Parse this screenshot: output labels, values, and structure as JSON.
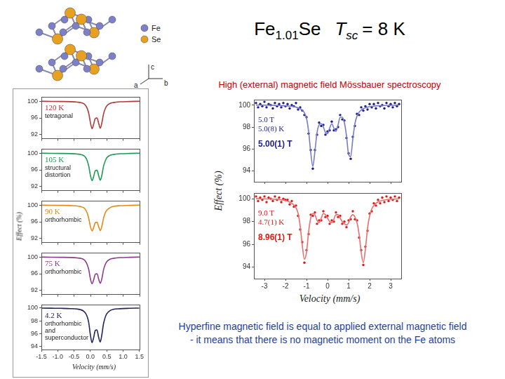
{
  "header": {
    "title": [
      [
        {
          "text": "Fe"
        },
        {
          "text": "1.01",
          "sub": true
        },
        {
          "text": "Se"
        }
      ],
      [
        {
          "text": "T",
          "italic": true
        },
        {
          "text": "sc",
          "sub": true,
          "italic": true
        },
        {
          "text": "= 8 K"
        }
      ]
    ],
    "subtitle": "High (external) magnetic field Mössbauer spectroscopy"
  },
  "structure": {
    "legend": [
      {
        "label": "Fe",
        "color": "#7d80c8"
      },
      {
        "label": "Se",
        "color": "#e8a020"
      }
    ],
    "axes": [
      "c",
      "a",
      "b"
    ]
  },
  "left_panel": {
    "x_label": "Velocity (mm/s)",
    "y_label": "Effect (%)"
  },
  "right_panel": {
    "x_label": "Velocity (mm/s)",
    "y_label": "Effect (%)"
  },
  "conclusion": [
    "Hyperfine magnetic field is equal to applied external magnetic field",
    "- it means that there is no magnetic moment on the Fe atoms"
  ],
  "chart_data": [
    {
      "type": "line",
      "title": "120 K",
      "annotations": [
        "tetragonal"
      ],
      "color": "#b03a3a",
      "x": [
        -1.5,
        -1.2,
        -0.9,
        -0.6,
        -0.4,
        -0.3,
        -0.2,
        -0.15,
        -0.1,
        -0.05,
        0,
        0.05,
        0.1,
        0.15,
        0.2,
        0.25,
        0.3,
        0.35,
        0.4,
        0.45,
        0.5,
        0.6,
        0.7,
        0.9,
        1.2,
        1.5
      ],
      "values": [
        100,
        99.98,
        99.95,
        99.9,
        99.8,
        99.7,
        99.4,
        99.0,
        98.3,
        97.0,
        94.8,
        93.4,
        94.6,
        95.9,
        96.0,
        94.7,
        93.5,
        94.9,
        97.0,
        98.2,
        98.9,
        99.5,
        99.7,
        99.88,
        99.95,
        100
      ],
      "xlim": [
        -1.5,
        1.5
      ],
      "xticks": [
        -1.5,
        {
          "value": -1,
          "label": "-1.0"
        },
        -0.5,
        {
          "value": 0,
          "label": "0.0"
        },
        0.5,
        {
          "value": 1,
          "label": "1.0"
        },
        1.5
      ],
      "ylim": [
        91,
        101
      ],
      "yticks": [
        92,
        96,
        100
      ],
      "tick_labels": "y"
    },
    {
      "type": "line",
      "title": "105 K",
      "annotations": [
        "structural",
        "distortion"
      ],
      "color": "#1f9a55",
      "x": [
        -1.5,
        -1.2,
        -0.9,
        -0.6,
        -0.4,
        -0.3,
        -0.2,
        -0.15,
        -0.1,
        -0.05,
        0,
        0.05,
        0.1,
        0.15,
        0.2,
        0.25,
        0.3,
        0.35,
        0.4,
        0.45,
        0.5,
        0.6,
        0.7,
        0.9,
        1.2,
        1.5
      ],
      "values": [
        100,
        99.98,
        99.95,
        99.9,
        99.8,
        99.7,
        99.4,
        99.0,
        98.2,
        96.8,
        94.6,
        93.4,
        94.5,
        95.8,
        95.9,
        94.6,
        93.5,
        94.8,
        96.9,
        98.1,
        98.9,
        99.5,
        99.7,
        99.88,
        99.95,
        100
      ],
      "xlim": [
        -1.5,
        1.5
      ],
      "xticks": [
        -1.5,
        {
          "value": -1,
          "label": "-1.0"
        },
        -0.5,
        {
          "value": 0,
          "label": "0.0"
        },
        0.5,
        {
          "value": 1,
          "label": "1.0"
        },
        1.5
      ],
      "ylim": [
        91,
        101
      ],
      "yticks": [
        92,
        96,
        100
      ],
      "tick_labels": "y"
    },
    {
      "type": "line",
      "title": "90 K",
      "annotations": [
        "orthorhombic"
      ],
      "color": "#e38a12",
      "x": [
        -1.5,
        -1.2,
        -0.9,
        -0.6,
        -0.4,
        -0.3,
        -0.2,
        -0.15,
        -0.1,
        -0.05,
        0,
        0.05,
        0.1,
        0.15,
        0.2,
        0.25,
        0.3,
        0.35,
        0.4,
        0.45,
        0.5,
        0.6,
        0.7,
        0.9,
        1.2,
        1.5
      ],
      "values": [
        100,
        99.98,
        99.95,
        99.9,
        99.8,
        99.65,
        99.35,
        98.9,
        98.1,
        96.7,
        94.8,
        93.8,
        94.7,
        95.8,
        95.9,
        94.8,
        93.9,
        95.0,
        96.9,
        98.1,
        98.8,
        99.4,
        99.7,
        99.88,
        99.95,
        100
      ],
      "xlim": [
        -1.5,
        1.5
      ],
      "xticks": [
        -1.5,
        {
          "value": -1,
          "label": "-1.0"
        },
        -0.5,
        {
          "value": 0,
          "label": "0.0"
        },
        0.5,
        {
          "value": 1,
          "label": "1.0"
        },
        1.5
      ],
      "ylim": [
        91,
        101
      ],
      "yticks": [
        92,
        96,
        100
      ],
      "tick_labels": "y"
    },
    {
      "type": "line",
      "title": "75 K",
      "annotations": [
        "orthorhombic"
      ],
      "color": "#8a3c8c",
      "x": [
        -1.5,
        -1.2,
        -0.9,
        -0.6,
        -0.4,
        -0.3,
        -0.2,
        -0.15,
        -0.1,
        -0.05,
        0,
        0.05,
        0.1,
        0.15,
        0.2,
        0.25,
        0.3,
        0.35,
        0.4,
        0.45,
        0.5,
        0.6,
        0.7,
        0.9,
        1.2,
        1.5
      ],
      "values": [
        100,
        99.98,
        99.95,
        99.9,
        99.8,
        99.7,
        99.4,
        98.95,
        98.2,
        96.9,
        94.7,
        93.6,
        94.6,
        95.9,
        96.0,
        94.7,
        93.7,
        94.9,
        97.0,
        98.2,
        98.9,
        99.5,
        99.7,
        99.88,
        99.95,
        100
      ],
      "xlim": [
        -1.5,
        1.5
      ],
      "xticks": [
        -1.5,
        {
          "value": -1,
          "label": "-1.0"
        },
        -0.5,
        {
          "value": 0,
          "label": "0.0"
        },
        0.5,
        {
          "value": 1,
          "label": "1.0"
        },
        1.5
      ],
      "ylim": [
        91,
        101
      ],
      "yticks": [
        92,
        96,
        100
      ],
      "tick_labels": "y"
    },
    {
      "type": "line",
      "title": "4.2 K",
      "annotations": [
        "orthorhombic",
        "and",
        "superconductor"
      ],
      "color": "#23235e",
      "x": [
        -1.5,
        -1.2,
        -0.9,
        -0.6,
        -0.4,
        -0.3,
        -0.2,
        -0.15,
        -0.1,
        -0.05,
        0,
        0.05,
        0.1,
        0.15,
        0.2,
        0.25,
        0.3,
        0.35,
        0.4,
        0.45,
        0.5,
        0.6,
        0.7,
        0.9,
        1.2,
        1.5
      ],
      "values": [
        100,
        99.98,
        99.96,
        99.92,
        99.85,
        99.75,
        99.5,
        99.2,
        98.7,
        97.7,
        95.8,
        94.6,
        95.4,
        96.5,
        96.6,
        95.5,
        94.7,
        95.8,
        97.5,
        98.5,
        99.1,
        99.6,
        99.8,
        99.9,
        99.96,
        100
      ],
      "xlim": [
        -1.5,
        1.5
      ],
      "xticks": [
        -1.5,
        {
          "value": -1,
          "label": "-1.0"
        },
        -0.5,
        {
          "value": 0,
          "label": "0.0"
        },
        0.5,
        {
          "value": 1,
          "label": "1.0"
        },
        1.5
      ],
      "ylim": [
        93.5,
        100.5
      ],
      "yticks": [
        94,
        96,
        98,
        100
      ]
    },
    {
      "type": "scatter",
      "annotations": [
        {
          "text": "5.0 T"
        },
        {
          "text": "5.0(8) K"
        },
        {
          "text": "5.00(1) T",
          "bold": true
        }
      ],
      "x": [
        -3.4,
        -3.3,
        -3.2,
        -3.1,
        -3.0,
        -2.9,
        -2.8,
        -2.7,
        -2.6,
        -2.5,
        -2.4,
        -2.3,
        -2.2,
        -2.1,
        -2.0,
        -1.9,
        -1.8,
        -1.7,
        -1.6,
        -1.5,
        -1.4,
        -1.3,
        -1.2,
        -1.1,
        -1.0,
        -0.9,
        -0.8,
        -0.7,
        -0.6,
        -0.5,
        -0.4,
        -0.3,
        -0.2,
        -0.1,
        0.0,
        0.1,
        0.2,
        0.3,
        0.4,
        0.5,
        0.6,
        0.7,
        0.8,
        0.9,
        1.0,
        1.1,
        1.2,
        1.3,
        1.4,
        1.5,
        1.6,
        1.7,
        1.8,
        1.9,
        2.0,
        2.1,
        2.2,
        2.3,
        2.4,
        2.5,
        2.6,
        2.7,
        2.8,
        2.9,
        3.0,
        3.1,
        3.2,
        3.3,
        3.4
      ],
      "series": [
        {
          "color": "#1c1c8a",
          "marker": "circle",
          "line_style": "none",
          "values": [
            100.2,
            99.8,
            100.1,
            99.9,
            100.3,
            99.8,
            100.1,
            100.0,
            99.7,
            100.2,
            99.9,
            100.1,
            99.8,
            100.2,
            99.9,
            100.1,
            99.7,
            100.0,
            99.9,
            100.2,
            99.6,
            99.8,
            99.5,
            99.1,
            98.9,
            97.4,
            95.9,
            94.2,
            95.9,
            97.3,
            98.4,
            98.1,
            98.2,
            97.3,
            97.6,
            97.7,
            98.5,
            97.7,
            97.8,
            98.0,
            99.1,
            98.7,
            98.6,
            97.0,
            95.6,
            95.1,
            97.1,
            98.1,
            99.2,
            99.1,
            99.8,
            99.5,
            99.9,
            99.6,
            100.1,
            99.8,
            100.1,
            99.7,
            100.2,
            99.9,
            100.0,
            99.7,
            100.2,
            99.9,
            100.1,
            99.8,
            100.2,
            99.9,
            100.1
          ]
        },
        {
          "color": "#7a7acc",
          "marker": "none",
          "line_style": "solid",
          "values": [
            100.0,
            100.0,
            100.0,
            100.0,
            100.0,
            99.99,
            99.99,
            99.99,
            99.98,
            99.98,
            99.97,
            99.97,
            99.96,
            99.95,
            99.94,
            99.93,
            99.91,
            99.89,
            99.86,
            99.82,
            99.76,
            99.68,
            99.55,
            99.3,
            98.8,
            97.6,
            95.7,
            94.4,
            95.8,
            97.5,
            98.2,
            98.3,
            98.0,
            97.5,
            97.4,
            97.9,
            98.3,
            97.9,
            97.6,
            98.2,
            98.9,
            98.9,
            98.4,
            97.2,
            95.5,
            95.3,
            96.9,
            98.3,
            99.0,
            99.35,
            99.55,
            99.68,
            99.76,
            99.82,
            99.86,
            99.89,
            99.91,
            99.93,
            99.94,
            99.95,
            99.96,
            99.97,
            99.97,
            99.98,
            99.98,
            99.99,
            99.99,
            100.0,
            100.0
          ]
        }
      ],
      "xlim": [
        -3.5,
        3.5
      ],
      "xticks": [
        -3,
        -2,
        -1,
        0,
        1,
        2,
        3
      ],
      "ylim": [
        93,
        100.5
      ],
      "yticks": [
        94,
        96,
        98,
        100
      ],
      "tick_labels": "y"
    },
    {
      "type": "scatter",
      "annotations": [
        {
          "text": "9.0 T"
        },
        {
          "text": "4.7(1) K"
        },
        {
          "text": "8.96(1) T",
          "bold": true
        }
      ],
      "x": [
        -3.4,
        -3.3,
        -3.2,
        -3.1,
        -3.0,
        -2.9,
        -2.8,
        -2.7,
        -2.6,
        -2.5,
        -2.4,
        -2.3,
        -2.2,
        -2.1,
        -2.0,
        -1.9,
        -1.8,
        -1.7,
        -1.6,
        -1.5,
        -1.4,
        -1.3,
        -1.2,
        -1.1,
        -1.0,
        -0.9,
        -0.8,
        -0.7,
        -0.6,
        -0.5,
        -0.4,
        -0.3,
        -0.2,
        -0.1,
        0.0,
        0.1,
        0.2,
        0.3,
        0.4,
        0.5,
        0.6,
        0.7,
        0.8,
        0.9,
        1.0,
        1.1,
        1.2,
        1.3,
        1.4,
        1.5,
        1.6,
        1.7,
        1.8,
        1.9,
        2.0,
        2.1,
        2.2,
        2.3,
        2.4,
        2.5,
        2.6,
        2.7,
        2.8,
        2.9,
        3.0,
        3.1,
        3.2,
        3.3,
        3.4
      ],
      "series": [
        {
          "color": "#e01818",
          "marker": "circle",
          "line_style": "none",
          "values": [
            100.2,
            99.8,
            100.1,
            99.9,
            100.2,
            99.7,
            100.1,
            100.0,
            99.8,
            100.2,
            99.9,
            100.1,
            99.7,
            100.0,
            99.9,
            99.9,
            99.5,
            99.8,
            99.3,
            99.4,
            98.5,
            97.3,
            96.2,
            94.4,
            95.5,
            96.9,
            98.6,
            98.5,
            98.8,
            97.8,
            98.1,
            98.1,
            98.9,
            98.4,
            98.5,
            97.8,
            98.1,
            98.0,
            98.8,
            98.4,
            98.5,
            97.8,
            98.0,
            97.5,
            98.1,
            98.2,
            98.9,
            98.2,
            98.1,
            96.6,
            95.5,
            94.2,
            95.8,
            97.2,
            98.7,
            98.9,
            99.6,
            99.4,
            99.9,
            99.6,
            100.1,
            99.7,
            100.2,
            99.8,
            100.1,
            99.9,
            100.2,
            99.8,
            100.1
          ]
        },
        {
          "color": "#e87070",
          "marker": "none",
          "line_style": "solid",
          "values": [
            100.0,
            100.0,
            99.99,
            99.99,
            99.99,
            99.98,
            99.98,
            99.97,
            99.96,
            99.95,
            99.94,
            99.92,
            99.9,
            99.87,
            99.83,
            99.78,
            99.7,
            99.6,
            99.45,
            99.2,
            98.7,
            97.6,
            95.9,
            94.7,
            95.3,
            97.1,
            98.3,
            98.7,
            98.6,
            98.1,
            97.9,
            98.3,
            98.7,
            98.6,
            98.3,
            98.0,
            97.9,
            98.2,
            98.6,
            98.6,
            98.3,
            98.0,
            97.8,
            97.7,
            97.9,
            98.4,
            98.6,
            98.4,
            97.9,
            96.9,
            95.3,
            94.4,
            95.6,
            97.4,
            98.5,
            99.1,
            99.4,
            99.6,
            99.72,
            99.8,
            99.85,
            99.89,
            99.92,
            99.94,
            99.95,
            99.96,
            99.97,
            99.98,
            99.99
          ]
        }
      ],
      "xlim": [
        -3.5,
        3.5
      ],
      "xticks": [
        -3,
        -2,
        -1,
        0,
        1,
        2,
        3
      ],
      "ylim": [
        93,
        100.5
      ],
      "yticks": [
        94,
        96,
        98,
        100
      ]
    }
  ]
}
